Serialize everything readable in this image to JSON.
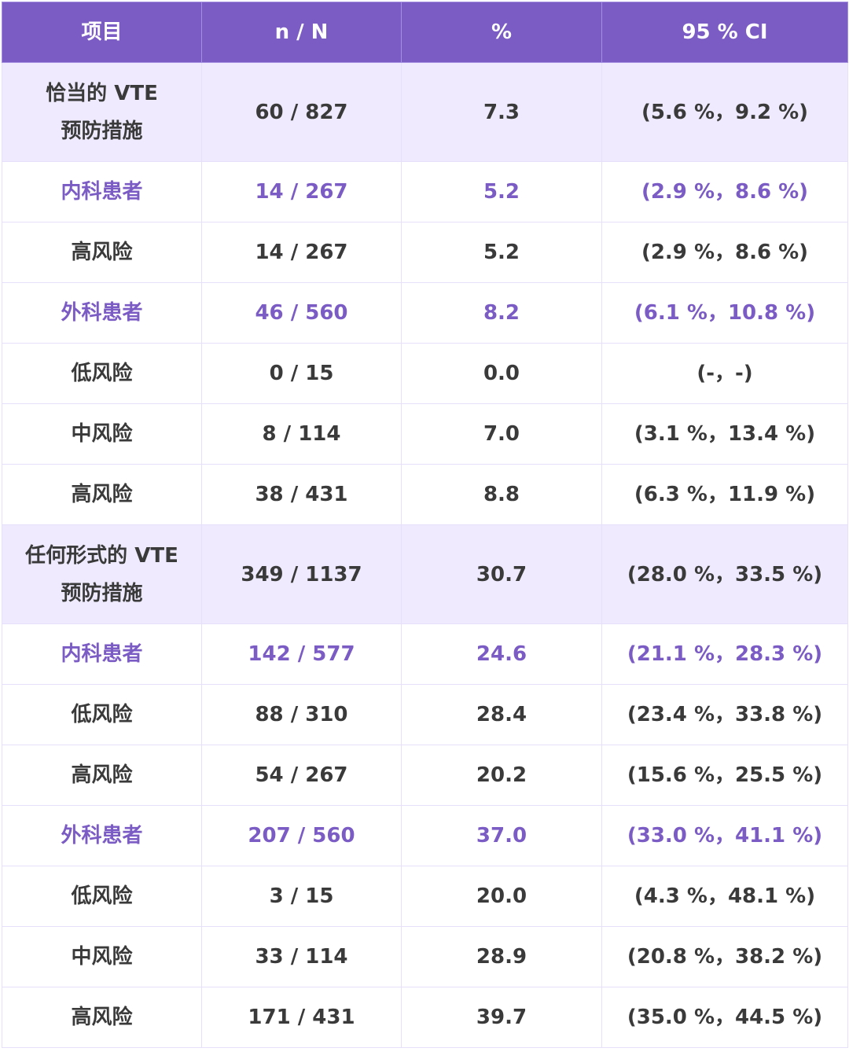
{
  "table": {
    "headers": [
      "项目",
      "n / N",
      "%",
      "95 % CI"
    ],
    "rows": [
      {
        "type": "section",
        "item": "恰当的  VTE\n预防措施",
        "item_line1": "恰当的  VTE",
        "item_line2": "预防措施",
        "nN": "60 / 827",
        "pct": "7.3",
        "ci": "(5.6 %，9.2 %)"
      },
      {
        "type": "sub",
        "item": "内科患者",
        "nN": "14 / 267",
        "pct": "5.2",
        "ci": "(2.9 %，8.6 %)"
      },
      {
        "type": "normal",
        "item": "高风险",
        "nN": "14 / 267",
        "pct": "5.2",
        "ci": "(2.9 %，8.6 %)"
      },
      {
        "type": "sub",
        "item": "外科患者",
        "nN": "46 / 560",
        "pct": "8.2",
        "ci": "(6.1 %，10.8 %)"
      },
      {
        "type": "normal",
        "item": "低风险",
        "nN": "0 / 15",
        "pct": "0.0",
        "ci": "(-，-)"
      },
      {
        "type": "normal",
        "item": "中风险",
        "nN": "8 / 114",
        "pct": "7.0",
        "ci": "(3.1 %，13.4 %)"
      },
      {
        "type": "normal",
        "item": "高风险",
        "nN": "38 / 431",
        "pct": "8.8",
        "ci": "(6.3 %，11.9 %)"
      },
      {
        "type": "section",
        "item": "任何形式的  VTE\n预防措施",
        "item_line1": "任何形式的  VTE",
        "item_line2": "预防措施",
        "nN": "349 / 1137",
        "pct": "30.7",
        "ci": "(28.0 %，33.5 %)"
      },
      {
        "type": "sub",
        "item": "内科患者",
        "nN": "142 / 577",
        "pct": "24.6",
        "ci": "(21.1 %，28.3 %)"
      },
      {
        "type": "normal",
        "item": "低风险",
        "nN": "88 / 310",
        "pct": "28.4",
        "ci": "(23.4 %，33.8 %)"
      },
      {
        "type": "normal",
        "item": "高风险",
        "nN": "54 / 267",
        "pct": "20.2",
        "ci": "(15.6 %，25.5 %)"
      },
      {
        "type": "sub",
        "item": "外科患者",
        "nN": "207 / 560",
        "pct": "37.0",
        "ci": "(33.0 %，41.1 %)"
      },
      {
        "type": "normal",
        "item": "低风险",
        "nN": "3 / 15",
        "pct": "20.0",
        "ci": "(4.3 %，48.1 %)"
      },
      {
        "type": "normal",
        "item": "中风险",
        "nN": "33 / 114",
        "pct": "28.9",
        "ci": "(20.8 %，38.2 %)"
      },
      {
        "type": "normal",
        "item": "高风险",
        "nN": "171 / 431",
        "pct": "39.7",
        "ci": "(35.0 %，44.5 %)"
      }
    ]
  },
  "colors": {
    "header_bg": "#7b5bc4",
    "header_text": "#ffffff",
    "section_bg": "#efeafd",
    "accent_text": "#7b5bc4",
    "body_text": "#3a3a3a",
    "grid": "#e6e0fb"
  }
}
